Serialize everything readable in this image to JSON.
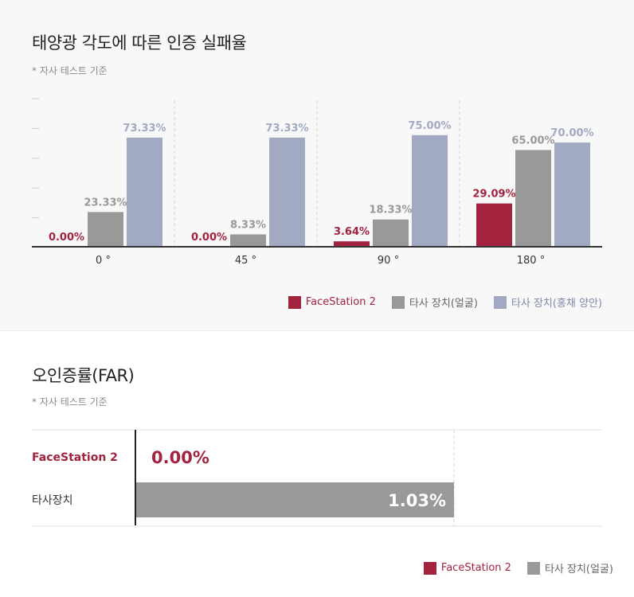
{
  "colors": {
    "facestation": "#a3233f",
    "face": "#999999",
    "iris": "#a2a9c3"
  },
  "section1": {
    "title": "태양광 각도에 따른 인증 실패율",
    "note": "* 자사 테스트 기준"
  },
  "section2": {
    "title": "오인증률(FAR)",
    "note": "* 자사 테스트 기준"
  },
  "chart_data": [
    {
      "type": "bar",
      "title": "태양광 각도에 따른 인증 실패율",
      "categories": [
        "0 °",
        "45 °",
        "90 °",
        "180 °"
      ],
      "series": [
        {
          "name": "FaceStation 2",
          "values": [
            0.0,
            0.0,
            3.64,
            29.09
          ],
          "labels": [
            "0.00%",
            "0.00%",
            "3.64%",
            "29.09%"
          ],
          "color": "#a3233f"
        },
        {
          "name": "타사 장치(얼굴)",
          "values": [
            23.33,
            8.33,
            18.33,
            65.0
          ],
          "labels": [
            "23.33%",
            "8.33%",
            "18.33%",
            "65.00%"
          ],
          "color": "#999999"
        },
        {
          "name": "타사 장치(홍채 양안)",
          "values": [
            73.33,
            73.33,
            75.0,
            70.0
          ],
          "labels": [
            "73.33%",
            "73.33%",
            "75.00%",
            "70.00%"
          ],
          "color": "#a2a9c3"
        }
      ],
      "ylim": [
        0,
        100
      ],
      "grid": false,
      "legend": "bottom-right"
    },
    {
      "type": "bar",
      "orientation": "horizontal",
      "title": "오인증률(FAR)",
      "categories": [
        "FaceStation 2",
        "타사장치"
      ],
      "values": [
        0.0,
        1.03
      ],
      "labels": [
        "0.00%",
        "1.03%"
      ],
      "colors": [
        "#a3233f",
        "#999999"
      ],
      "xlim": [
        0,
        1.03
      ],
      "legend_items": [
        {
          "name": "FaceStation 2",
          "color": "#a3233f"
        },
        {
          "name": "타사 장치(얼굴)",
          "color": "#999999"
        }
      ],
      "legend": "bottom-right"
    }
  ]
}
